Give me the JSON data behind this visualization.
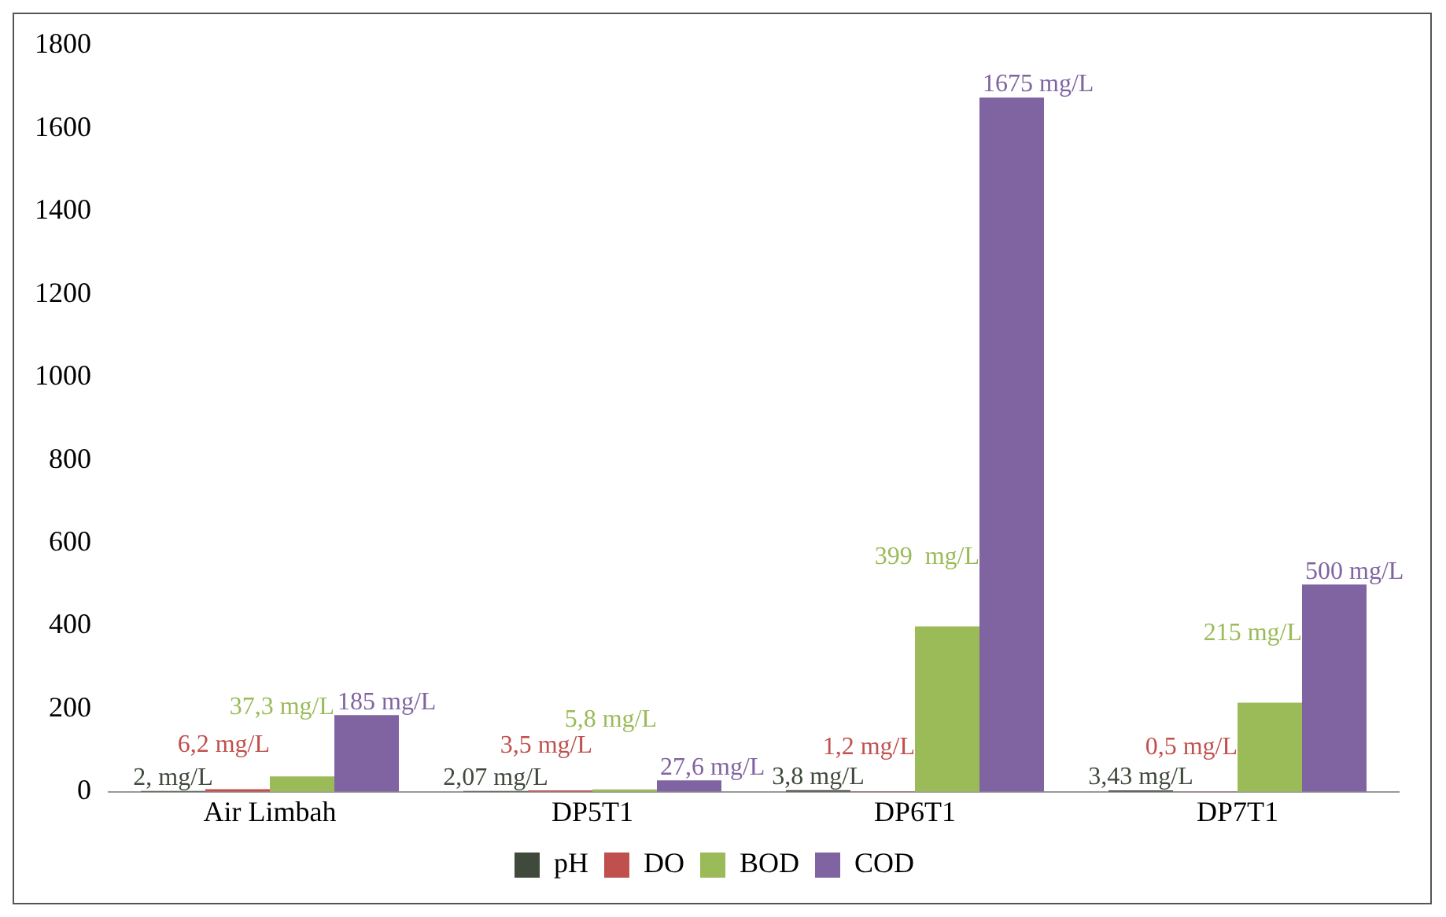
{
  "chart_data": {
    "type": "bar",
    "categories": [
      "Air Limbah",
      "DP5T1",
      "DP6T1",
      "DP7T1"
    ],
    "series": [
      {
        "name": "pH",
        "color": "#404a3c",
        "values": [
          2,
          2.07,
          3.8,
          3.43
        ],
        "value_labels": [
          "2, mg/L",
          "2,07 mg/L",
          "3,8 mg/L",
          "3,43 mg/L"
        ]
      },
      {
        "name": "DO",
        "color": "#c0504d",
        "values": [
          6.2,
          3.5,
          1.2,
          0.5
        ],
        "value_labels": [
          "6,2 mg/L",
          "3,5 mg/L",
          "1,2 mg/L",
          "0,5 mg/L"
        ]
      },
      {
        "name": "BOD",
        "color": "#9bbb59",
        "values": [
          37.3,
          5.8,
          399,
          215
        ],
        "value_labels": [
          "37,3 mg/L",
          "5,8 mg/L",
          "399  mg/L",
          "215 mg/L"
        ]
      },
      {
        "name": "COD",
        "color": "#8064a2",
        "values": [
          185,
          27.6,
          1675,
          500
        ],
        "value_labels": [
          "185 mg/L",
          "27,6 mg/L",
          "1675 mg/L",
          "500 mg/L"
        ]
      }
    ],
    "ylim": [
      0,
      1800
    ],
    "yticks": [
      0,
      200,
      400,
      600,
      800,
      1000,
      1200,
      1400,
      1600,
      1800
    ],
    "grid": false,
    "legend": "bottom"
  }
}
